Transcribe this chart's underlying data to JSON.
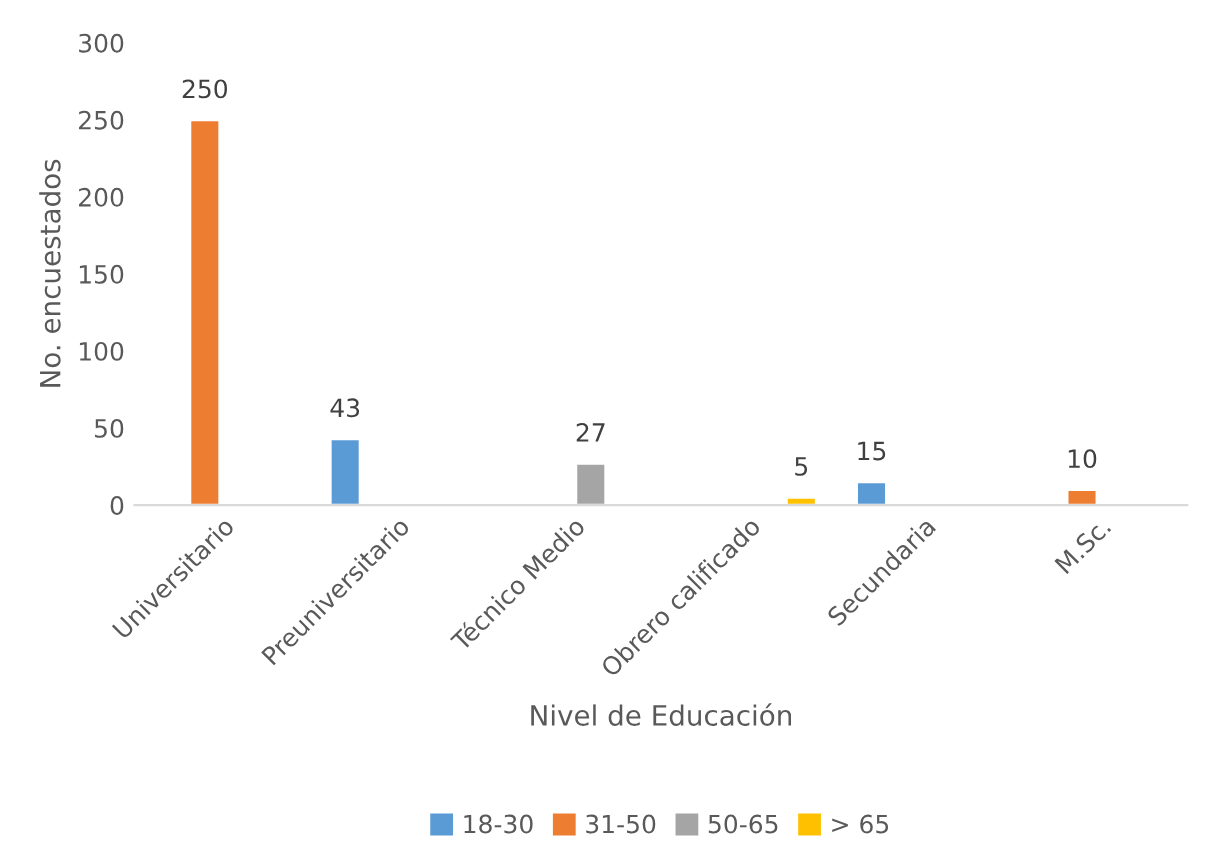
{
  "chart_data": {
    "type": "bar",
    "xlabel": "Nivel de Educación",
    "ylabel": "No. encuestados",
    "categories": [
      "Universitario",
      "Preuniversitario",
      "Técnico Medio",
      "Obrero calificado",
      "Secundaria",
      "M.Sc."
    ],
    "series": [
      {
        "name": "18-30",
        "color": "#5b9bd5",
        "values": [
          null,
          43,
          null,
          null,
          15,
          null
        ]
      },
      {
        "name": "31-50",
        "color": "#ed7d31",
        "values": [
          250,
          null,
          null,
          null,
          null,
          10
        ]
      },
      {
        "name": "50-65",
        "color": "#a5a5a5",
        "values": [
          null,
          null,
          27,
          null,
          null,
          null
        ]
      },
      {
        "name": "> 65",
        "color": "#ffc000",
        "values": [
          null,
          null,
          null,
          5,
          null,
          null
        ]
      }
    ],
    "ylim": [
      0,
      300
    ],
    "yticks": [
      0,
      50,
      100,
      150,
      200,
      250,
      300
    ],
    "grid": false,
    "legend": "bottom",
    "data_labels": true
  }
}
